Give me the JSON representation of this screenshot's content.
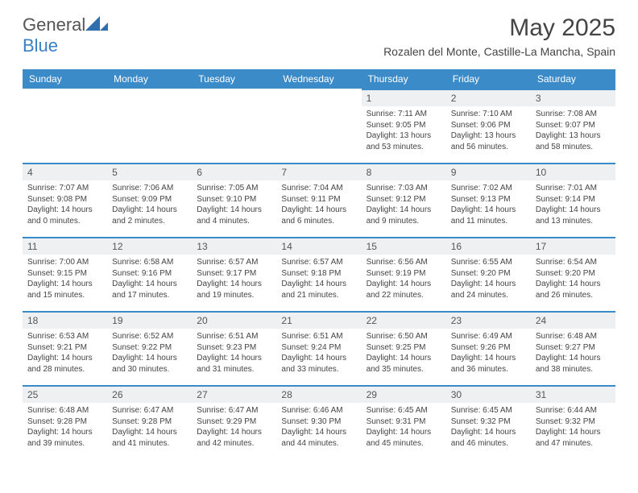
{
  "logo": {
    "text1": "General",
    "text2": "Blue"
  },
  "title": "May 2025",
  "subtitle": "Rozalen del Monte, Castille-La Mancha, Spain",
  "colors": {
    "header_bg": "#3b8bc9",
    "header_text": "#ffffff",
    "daynum_bg": "#eef0f1",
    "border_top": "#3b8bc9",
    "body_text": "#444444",
    "page_bg": "#ffffff"
  },
  "fonts": {
    "title_size": 30,
    "subtitle_size": 14,
    "header_size": 12,
    "daynum_size": 12,
    "cell_size": 10
  },
  "weekdays": [
    "Sunday",
    "Monday",
    "Tuesday",
    "Wednesday",
    "Thursday",
    "Friday",
    "Saturday"
  ],
  "weeks": [
    [
      null,
      null,
      null,
      null,
      {
        "n": "1",
        "sr": "7:11 AM",
        "ss": "9:05 PM",
        "dl": "13 hours and 53 minutes."
      },
      {
        "n": "2",
        "sr": "7:10 AM",
        "ss": "9:06 PM",
        "dl": "13 hours and 56 minutes."
      },
      {
        "n": "3",
        "sr": "7:08 AM",
        "ss": "9:07 PM",
        "dl": "13 hours and 58 minutes."
      }
    ],
    [
      {
        "n": "4",
        "sr": "7:07 AM",
        "ss": "9:08 PM",
        "dl": "14 hours and 0 minutes."
      },
      {
        "n": "5",
        "sr": "7:06 AM",
        "ss": "9:09 PM",
        "dl": "14 hours and 2 minutes."
      },
      {
        "n": "6",
        "sr": "7:05 AM",
        "ss": "9:10 PM",
        "dl": "14 hours and 4 minutes."
      },
      {
        "n": "7",
        "sr": "7:04 AM",
        "ss": "9:11 PM",
        "dl": "14 hours and 6 minutes."
      },
      {
        "n": "8",
        "sr": "7:03 AM",
        "ss": "9:12 PM",
        "dl": "14 hours and 9 minutes."
      },
      {
        "n": "9",
        "sr": "7:02 AM",
        "ss": "9:13 PM",
        "dl": "14 hours and 11 minutes."
      },
      {
        "n": "10",
        "sr": "7:01 AM",
        "ss": "9:14 PM",
        "dl": "14 hours and 13 minutes."
      }
    ],
    [
      {
        "n": "11",
        "sr": "7:00 AM",
        "ss": "9:15 PM",
        "dl": "14 hours and 15 minutes."
      },
      {
        "n": "12",
        "sr": "6:58 AM",
        "ss": "9:16 PM",
        "dl": "14 hours and 17 minutes."
      },
      {
        "n": "13",
        "sr": "6:57 AM",
        "ss": "9:17 PM",
        "dl": "14 hours and 19 minutes."
      },
      {
        "n": "14",
        "sr": "6:57 AM",
        "ss": "9:18 PM",
        "dl": "14 hours and 21 minutes."
      },
      {
        "n": "15",
        "sr": "6:56 AM",
        "ss": "9:19 PM",
        "dl": "14 hours and 22 minutes."
      },
      {
        "n": "16",
        "sr": "6:55 AM",
        "ss": "9:20 PM",
        "dl": "14 hours and 24 minutes."
      },
      {
        "n": "17",
        "sr": "6:54 AM",
        "ss": "9:20 PM",
        "dl": "14 hours and 26 minutes."
      }
    ],
    [
      {
        "n": "18",
        "sr": "6:53 AM",
        "ss": "9:21 PM",
        "dl": "14 hours and 28 minutes."
      },
      {
        "n": "19",
        "sr": "6:52 AM",
        "ss": "9:22 PM",
        "dl": "14 hours and 30 minutes."
      },
      {
        "n": "20",
        "sr": "6:51 AM",
        "ss": "9:23 PM",
        "dl": "14 hours and 31 minutes."
      },
      {
        "n": "21",
        "sr": "6:51 AM",
        "ss": "9:24 PM",
        "dl": "14 hours and 33 minutes."
      },
      {
        "n": "22",
        "sr": "6:50 AM",
        "ss": "9:25 PM",
        "dl": "14 hours and 35 minutes."
      },
      {
        "n": "23",
        "sr": "6:49 AM",
        "ss": "9:26 PM",
        "dl": "14 hours and 36 minutes."
      },
      {
        "n": "24",
        "sr": "6:48 AM",
        "ss": "9:27 PM",
        "dl": "14 hours and 38 minutes."
      }
    ],
    [
      {
        "n": "25",
        "sr": "6:48 AM",
        "ss": "9:28 PM",
        "dl": "14 hours and 39 minutes."
      },
      {
        "n": "26",
        "sr": "6:47 AM",
        "ss": "9:28 PM",
        "dl": "14 hours and 41 minutes."
      },
      {
        "n": "27",
        "sr": "6:47 AM",
        "ss": "9:29 PM",
        "dl": "14 hours and 42 minutes."
      },
      {
        "n": "28",
        "sr": "6:46 AM",
        "ss": "9:30 PM",
        "dl": "14 hours and 44 minutes."
      },
      {
        "n": "29",
        "sr": "6:45 AM",
        "ss": "9:31 PM",
        "dl": "14 hours and 45 minutes."
      },
      {
        "n": "30",
        "sr": "6:45 AM",
        "ss": "9:32 PM",
        "dl": "14 hours and 46 minutes."
      },
      {
        "n": "31",
        "sr": "6:44 AM",
        "ss": "9:32 PM",
        "dl": "14 hours and 47 minutes."
      }
    ]
  ],
  "labels": {
    "sunrise": "Sunrise:",
    "sunset": "Sunset:",
    "daylight": "Daylight:"
  }
}
